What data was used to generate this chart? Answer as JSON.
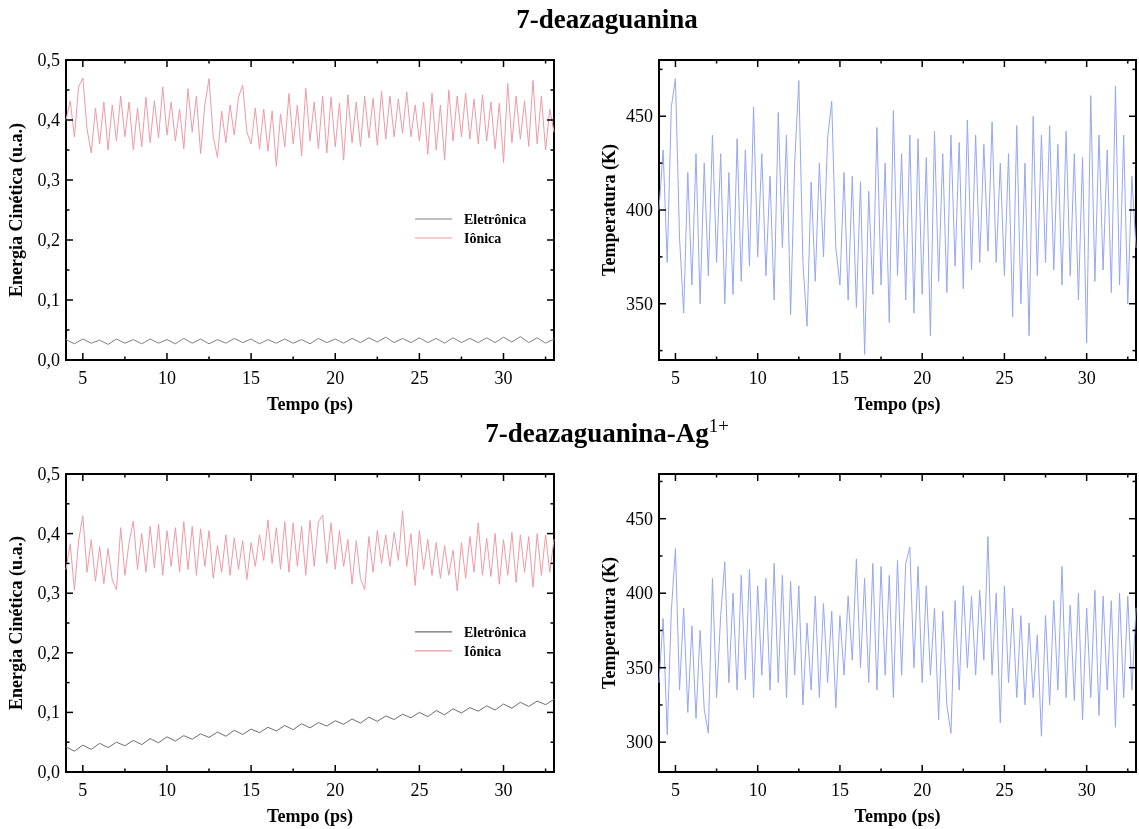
{
  "chart_data": [
    {
      "type": "line",
      "title": "7-deazaguanina",
      "xlabel": "Tempo (ps)",
      "ylabel": "Energia Cinética (u.a.)",
      "legend": "right",
      "xlim": [
        4,
        33
      ],
      "xticks": [
        5,
        {
          "value": 7.5,
          "label": null
        },
        10,
        {
          "value": 12.5,
          "label": null
        },
        15,
        {
          "value": 17.5,
          "label": null
        },
        20,
        {
          "value": 22.5,
          "label": null
        },
        25,
        {
          "value": 27.5,
          "label": null
        },
        30,
        {
          "value": 32.5,
          "label": null
        }
      ],
      "ylim": [
        0,
        0.5
      ],
      "yticks": [
        {
          "value": 0,
          "label": "0,0"
        },
        {
          "value": 0.05,
          "label": null
        },
        {
          "value": 0.1,
          "label": "0,1"
        },
        {
          "value": 0.15,
          "label": null
        },
        {
          "value": 0.2,
          "label": "0,2"
        },
        {
          "value": 0.25,
          "label": null
        },
        {
          "value": 0.3,
          "label": "0,3"
        },
        {
          "value": 0.35,
          "label": null
        },
        {
          "value": 0.4,
          "label": "0,4"
        },
        {
          "value": 0.45,
          "label": null
        },
        {
          "value": 0.5,
          "label": "0,5"
        }
      ],
      "x": [
        4,
        4.25,
        4.5,
        4.75,
        5,
        5.25,
        5.5,
        5.75,
        6,
        6.25,
        6.5,
        6.75,
        7,
        7.25,
        7.5,
        7.75,
        8,
        8.25,
        8.5,
        8.75,
        9,
        9.25,
        9.5,
        9.75,
        10,
        10.25,
        10.5,
        10.75,
        11,
        11.25,
        11.5,
        11.75,
        12,
        12.25,
        12.5,
        12.75,
        13,
        13.25,
        13.5,
        13.75,
        14,
        14.25,
        14.5,
        14.75,
        15,
        15.25,
        15.5,
        15.75,
        16,
        16.25,
        16.5,
        16.75,
        17,
        17.25,
        17.5,
        17.75,
        18,
        18.25,
        18.5,
        18.75,
        19,
        19.25,
        19.5,
        19.75,
        20,
        20.25,
        20.5,
        20.75,
        21,
        21.25,
        21.5,
        21.75,
        22,
        22.25,
        22.5,
        22.75,
        23,
        23.25,
        23.5,
        23.75,
        24,
        24.25,
        24.5,
        24.75,
        25,
        25.25,
        25.5,
        25.75,
        26,
        26.25,
        26.5,
        26.75,
        27,
        27.25,
        27.5,
        27.75,
        28,
        28.25,
        28.5,
        28.75,
        29,
        29.25,
        29.5,
        29.75,
        30,
        30.25,
        30.5,
        30.75,
        31,
        31.25,
        31.5,
        31.75,
        32,
        32.25,
        32.5,
        32.75,
        33
      ],
      "series": [
        {
          "name": "Eletrônica",
          "color": "#808080",
          "x": [
            4,
            4.5,
            5,
            5.5,
            6,
            6.5,
            7,
            7.5,
            8,
            8.5,
            9,
            9.5,
            10,
            10.5,
            11,
            11.5,
            12,
            12.5,
            13,
            13.5,
            14,
            14.5,
            15,
            15.5,
            16,
            16.5,
            17,
            17.5,
            18,
            18.5,
            19,
            19.5,
            20,
            20.5,
            21,
            21.5,
            22,
            22.5,
            23,
            23.5,
            24,
            24.5,
            25,
            25.5,
            26,
            26.5,
            27,
            27.5,
            28,
            28.5,
            29,
            29.5,
            30,
            30.5,
            31,
            31.5,
            32,
            32.5,
            33
          ],
          "values": [
            0.034,
            0.027,
            0.035,
            0.028,
            0.033,
            0.026,
            0.035,
            0.028,
            0.034,
            0.027,
            0.035,
            0.028,
            0.034,
            0.027,
            0.036,
            0.028,
            0.035,
            0.027,
            0.034,
            0.028,
            0.036,
            0.029,
            0.035,
            0.027,
            0.034,
            0.028,
            0.035,
            0.028,
            0.034,
            0.027,
            0.036,
            0.029,
            0.035,
            0.028,
            0.036,
            0.029,
            0.037,
            0.03,
            0.038,
            0.029,
            0.036,
            0.029,
            0.037,
            0.029,
            0.036,
            0.028,
            0.037,
            0.029,
            0.036,
            0.029,
            0.037,
            0.029,
            0.038,
            0.03,
            0.039,
            0.029,
            0.037,
            0.028,
            0.035
          ]
        },
        {
          "name": "Iônica",
          "color": "#ee9aa6",
          "values": [
            0.4,
            0.432,
            0.372,
            0.455,
            0.47,
            0.385,
            0.345,
            0.42,
            0.36,
            0.43,
            0.35,
            0.425,
            0.365,
            0.44,
            0.372,
            0.43,
            0.35,
            0.42,
            0.355,
            0.438,
            0.362,
            0.432,
            0.37,
            0.455,
            0.375,
            0.43,
            0.365,
            0.418,
            0.352,
            0.452,
            0.38,
            0.44,
            0.344,
            0.425,
            0.469,
            0.372,
            0.338,
            0.415,
            0.362,
            0.425,
            0.375,
            0.438,
            0.458,
            0.38,
            0.36,
            0.42,
            0.352,
            0.418,
            0.348,
            0.415,
            0.323,
            0.41,
            0.355,
            0.444,
            0.36,
            0.425,
            0.34,
            0.453,
            0.365,
            0.43,
            0.352,
            0.44,
            0.345,
            0.438,
            0.355,
            0.428,
            0.333,
            0.442,
            0.362,
            0.43,
            0.356,
            0.44,
            0.37,
            0.436,
            0.358,
            0.448,
            0.368,
            0.44,
            0.372,
            0.435,
            0.378,
            0.447,
            0.372,
            0.425,
            0.365,
            0.43,
            0.343,
            0.445,
            0.35,
            0.425,
            0.333,
            0.45,
            0.365,
            0.44,
            0.372,
            0.445,
            0.368,
            0.435,
            0.36,
            0.442,
            0.365,
            0.43,
            0.352,
            0.428,
            0.329,
            0.461,
            0.362,
            0.44,
            0.368,
            0.432,
            0.356,
            0.466,
            0.36,
            0.44,
            0.35,
            0.418,
            0.38
          ]
        }
      ]
    },
    {
      "type": "line",
      "xlabel": "Tempo (ps)",
      "ylabel": "Temperatura (K)",
      "xlim": [
        4,
        33
      ],
      "xticks": [
        5,
        {
          "value": 7.5,
          "label": null
        },
        10,
        {
          "value": 12.5,
          "label": null
        },
        15,
        {
          "value": 17.5,
          "label": null
        },
        20,
        {
          "value": 22.5,
          "label": null
        },
        25,
        {
          "value": 27.5,
          "label": null
        },
        30,
        {
          "value": 32.5,
          "label": null
        }
      ],
      "ylim": [
        320,
        480
      ],
      "yticks": [
        {
          "value": 325,
          "label": null
        },
        350,
        {
          "value": 375,
          "label": null
        },
        400,
        {
          "value": 425,
          "label": null
        },
        450,
        {
          "value": 475,
          "label": null
        }
      ],
      "x": [
        4,
        4.25,
        4.5,
        4.75,
        5,
        5.25,
        5.5,
        5.75,
        6,
        6.25,
        6.5,
        6.75,
        7,
        7.25,
        7.5,
        7.75,
        8,
        8.25,
        8.5,
        8.75,
        9,
        9.25,
        9.5,
        9.75,
        10,
        10.25,
        10.5,
        10.75,
        11,
        11.25,
        11.5,
        11.75,
        12,
        12.25,
        12.5,
        12.75,
        13,
        13.25,
        13.5,
        13.75,
        14,
        14.25,
        14.5,
        14.75,
        15,
        15.25,
        15.5,
        15.75,
        16,
        16.25,
        16.5,
        16.75,
        17,
        17.25,
        17.5,
        17.75,
        18,
        18.25,
        18.5,
        18.75,
        19,
        19.25,
        19.5,
        19.75,
        20,
        20.25,
        20.5,
        20.75,
        21,
        21.25,
        21.5,
        21.75,
        22,
        22.25,
        22.5,
        22.75,
        23,
        23.25,
        23.5,
        23.75,
        24,
        24.25,
        24.5,
        24.75,
        25,
        25.25,
        25.5,
        25.75,
        26,
        26.25,
        26.5,
        26.75,
        27,
        27.25,
        27.5,
        27.75,
        28,
        28.25,
        28.5,
        28.75,
        29,
        29.25,
        29.5,
        29.75,
        30,
        30.25,
        30.5,
        30.75,
        31,
        31.25,
        31.5,
        31.75,
        32,
        32.25,
        32.5,
        32.75,
        33
      ],
      "series": [
        {
          "color": "#96a6f2",
          "values": [
            400,
            432,
            372,
            455,
            470,
            385,
            345,
            420,
            360,
            430,
            350,
            425,
            365,
            440,
            372,
            430,
            350,
            420,
            355,
            438,
            362,
            432,
            370,
            455,
            375,
            430,
            365,
            418,
            352,
            452,
            380,
            440,
            344,
            425,
            469,
            372,
            338,
            415,
            362,
            425,
            375,
            438,
            458,
            380,
            360,
            420,
            352,
            418,
            348,
            415,
            323,
            410,
            355,
            444,
            360,
            425,
            340,
            453,
            365,
            430,
            352,
            440,
            345,
            438,
            355,
            428,
            333,
            442,
            362,
            430,
            356,
            440,
            370,
            436,
            358,
            448,
            368,
            440,
            372,
            435,
            378,
            447,
            372,
            425,
            365,
            430,
            343,
            445,
            350,
            425,
            333,
            450,
            365,
            440,
            372,
            445,
            368,
            435,
            360,
            442,
            365,
            430,
            352,
            428,
            329,
            461,
            362,
            440,
            368,
            432,
            356,
            466,
            360,
            440,
            350,
            418,
            380
          ]
        }
      ]
    },
    {
      "type": "line",
      "title": "7-deazaguanina-Ag$^{1+}$",
      "xlabel": "Tempo (ps)",
      "ylabel": "Energia Cinética (u.a.)",
      "legend": "right",
      "xlim": [
        4,
        33
      ],
      "xticks": [
        5,
        {
          "value": 7.5,
          "label": null
        },
        10,
        {
          "value": 12.5,
          "label": null
        },
        15,
        {
          "value": 17.5,
          "label": null
        },
        20,
        {
          "value": 22.5,
          "label": null
        },
        25,
        {
          "value": 27.5,
          "label": null
        },
        30,
        {
          "value": 32.5,
          "label": null
        }
      ],
      "ylim": [
        0,
        0.5
      ],
      "yticks": [
        {
          "value": 0,
          "label": "0,0"
        },
        {
          "value": 0.05,
          "label": null
        },
        {
          "value": 0.1,
          "label": "0,1"
        },
        {
          "value": 0.15,
          "label": null
        },
        {
          "value": 0.2,
          "label": "0,2"
        },
        {
          "value": 0.25,
          "label": null
        },
        {
          "value": 0.3,
          "label": "0,3"
        },
        {
          "value": 0.35,
          "label": null
        },
        {
          "value": 0.4,
          "label": "0,4"
        },
        {
          "value": 0.45,
          "label": null
        },
        {
          "value": 0.5,
          "label": "0,5"
        }
      ],
      "x": [
        4,
        4.25,
        4.5,
        4.75,
        5,
        5.25,
        5.5,
        5.75,
        6,
        6.25,
        6.5,
        6.75,
        7,
        7.25,
        7.5,
        7.75,
        8,
        8.25,
        8.5,
        8.75,
        9,
        9.25,
        9.5,
        9.75,
        10,
        10.25,
        10.5,
        10.75,
        11,
        11.25,
        11.5,
        11.75,
        12,
        12.25,
        12.5,
        12.75,
        13,
        13.25,
        13.5,
        13.75,
        14,
        14.25,
        14.5,
        14.75,
        15,
        15.25,
        15.5,
        15.75,
        16,
        16.25,
        16.5,
        16.75,
        17,
        17.25,
        17.5,
        17.75,
        18,
        18.25,
        18.5,
        18.75,
        19,
        19.25,
        19.5,
        19.75,
        20,
        20.25,
        20.5,
        20.75,
        21,
        21.25,
        21.5,
        21.75,
        22,
        22.25,
        22.5,
        22.75,
        23,
        23.25,
        23.5,
        23.75,
        24,
        24.25,
        24.5,
        24.75,
        25,
        25.25,
        25.5,
        25.75,
        26,
        26.25,
        26.5,
        26.75,
        27,
        27.25,
        27.5,
        27.75,
        28,
        28.25,
        28.5,
        28.75,
        29,
        29.25,
        29.5,
        29.75,
        30,
        30.25,
        30.5,
        30.75,
        31,
        31.25,
        31.5,
        31.75,
        32,
        32.25,
        32.5,
        32.75,
        33
      ],
      "series": [
        {
          "name": "Eletrônica",
          "color": "#6e6e6e",
          "x": [
            4,
            4.5,
            5,
            5.5,
            6,
            6.5,
            7,
            7.5,
            8,
            8.5,
            9,
            9.5,
            10,
            10.5,
            11,
            11.5,
            12,
            12.5,
            13,
            13.5,
            14,
            14.5,
            15,
            15.5,
            16,
            16.5,
            17,
            17.5,
            18,
            18.5,
            19,
            19.5,
            20,
            20.5,
            21,
            21.5,
            22,
            22.5,
            23,
            23.5,
            24,
            24.5,
            25,
            25.5,
            26,
            26.5,
            27,
            27.5,
            28,
            28.5,
            29,
            29.5,
            30,
            30.5,
            31,
            31.5,
            32,
            32.5,
            33
          ],
          "values": [
            0.042,
            0.035,
            0.045,
            0.038,
            0.048,
            0.041,
            0.05,
            0.044,
            0.053,
            0.046,
            0.056,
            0.049,
            0.059,
            0.052,
            0.061,
            0.055,
            0.064,
            0.058,
            0.067,
            0.06,
            0.07,
            0.063,
            0.072,
            0.066,
            0.075,
            0.069,
            0.078,
            0.071,
            0.081,
            0.074,
            0.083,
            0.077,
            0.086,
            0.08,
            0.089,
            0.082,
            0.092,
            0.085,
            0.094,
            0.088,
            0.097,
            0.091,
            0.1,
            0.093,
            0.103,
            0.096,
            0.106,
            0.099,
            0.108,
            0.102,
            0.111,
            0.104,
            0.114,
            0.107,
            0.117,
            0.11,
            0.119,
            0.113,
            0.122
          ]
        },
        {
          "name": "Iônica",
          "color": "#ee9aa6",
          "values": [
            0.34,
            0.383,
            0.305,
            0.388,
            0.43,
            0.335,
            0.39,
            0.32,
            0.378,
            0.316,
            0.375,
            0.322,
            0.306,
            0.41,
            0.33,
            0.385,
            0.421,
            0.34,
            0.4,
            0.335,
            0.412,
            0.342,
            0.416,
            0.33,
            0.405,
            0.345,
            0.41,
            0.335,
            0.42,
            0.34,
            0.412,
            0.33,
            0.408,
            0.345,
            0.405,
            0.325,
            0.38,
            0.335,
            0.398,
            0.33,
            0.393,
            0.34,
            0.388,
            0.323,
            0.385,
            0.345,
            0.398,
            0.355,
            0.423,
            0.35,
            0.41,
            0.34,
            0.42,
            0.335,
            0.418,
            0.345,
            0.412,
            0.33,
            0.422,
            0.345,
            0.42,
            0.431,
            0.35,
            0.418,
            0.34,
            0.405,
            0.345,
            0.39,
            0.315,
            0.388,
            0.325,
            0.306,
            0.395,
            0.335,
            0.405,
            0.35,
            0.398,
            0.345,
            0.402,
            0.355,
            0.438,
            0.345,
            0.4,
            0.313,
            0.405,
            0.34,
            0.39,
            0.33,
            0.385,
            0.325,
            0.38,
            0.33,
            0.372,
            0.304,
            0.385,
            0.325,
            0.395,
            0.335,
            0.418,
            0.33,
            0.392,
            0.328,
            0.4,
            0.315,
            0.39,
            0.33,
            0.402,
            0.318,
            0.398,
            0.335,
            0.395,
            0.31,
            0.4,
            0.33,
            0.398,
            0.335,
            0.39
          ]
        }
      ]
    },
    {
      "type": "line",
      "xlabel": "Tempo (ps)",
      "ylabel": "Temperatura (K)",
      "xlim": [
        4,
        33
      ],
      "xticks": [
        5,
        {
          "value": 7.5,
          "label": null
        },
        10,
        {
          "value": 12.5,
          "label": null
        },
        15,
        {
          "value": 17.5,
          "label": null
        },
        20,
        {
          "value": 22.5,
          "label": null
        },
        25,
        {
          "value": 27.5,
          "label": null
        },
        30,
        {
          "value": 32.5,
          "label": null
        }
      ],
      "ylim": [
        280,
        480
      ],
      "yticks": [
        300,
        {
          "value": 325,
          "label": null
        },
        350,
        {
          "value": 375,
          "label": null
        },
        400,
        {
          "value": 425,
          "label": null
        },
        450,
        {
          "value": 475,
          "label": null
        }
      ],
      "x": [
        4,
        4.25,
        4.5,
        4.75,
        5,
        5.25,
        5.5,
        5.75,
        6,
        6.25,
        6.5,
        6.75,
        7,
        7.25,
        7.5,
        7.75,
        8,
        8.25,
        8.5,
        8.75,
        9,
        9.25,
        9.5,
        9.75,
        10,
        10.25,
        10.5,
        10.75,
        11,
        11.25,
        11.5,
        11.75,
        12,
        12.25,
        12.5,
        12.75,
        13,
        13.25,
        13.5,
        13.75,
        14,
        14.25,
        14.5,
        14.75,
        15,
        15.25,
        15.5,
        15.75,
        16,
        16.25,
        16.5,
        16.75,
        17,
        17.25,
        17.5,
        17.75,
        18,
        18.25,
        18.5,
        18.75,
        19,
        19.25,
        19.5,
        19.75,
        20,
        20.25,
        20.5,
        20.75,
        21,
        21.25,
        21.5,
        21.75,
        22,
        22.25,
        22.5,
        22.75,
        23,
        23.25,
        23.5,
        23.75,
        24,
        24.25,
        24.5,
        24.75,
        25,
        25.25,
        25.5,
        25.75,
        26,
        26.25,
        26.5,
        26.75,
        27,
        27.25,
        27.5,
        27.75,
        28,
        28.25,
        28.5,
        28.75,
        29,
        29.25,
        29.5,
        29.75,
        30,
        30.25,
        30.5,
        30.75,
        31,
        31.25,
        31.5,
        31.75,
        32,
        32.25,
        32.5,
        32.75,
        33
      ],
      "series": [
        {
          "color": "#96a6f2",
          "values": [
            340,
            383,
            305,
            388,
            430,
            335,
            390,
            320,
            378,
            316,
            375,
            322,
            306,
            410,
            330,
            385,
            421,
            340,
            400,
            335,
            412,
            342,
            416,
            330,
            405,
            345,
            410,
            335,
            420,
            340,
            412,
            330,
            408,
            345,
            405,
            325,
            380,
            335,
            398,
            330,
            393,
            340,
            388,
            323,
            385,
            345,
            398,
            355,
            423,
            350,
            410,
            340,
            420,
            335,
            418,
            345,
            412,
            330,
            422,
            345,
            420,
            431,
            350,
            418,
            340,
            405,
            345,
            390,
            315,
            388,
            325,
            306,
            395,
            335,
            405,
            350,
            398,
            345,
            402,
            355,
            438,
            345,
            400,
            313,
            405,
            340,
            390,
            330,
            385,
            325,
            380,
            330,
            372,
            304,
            385,
            325,
            395,
            335,
            418,
            330,
            392,
            328,
            400,
            315,
            390,
            330,
            402,
            318,
            398,
            335,
            395,
            310,
            400,
            330,
            398,
            335,
            390
          ]
        }
      ]
    }
  ]
}
